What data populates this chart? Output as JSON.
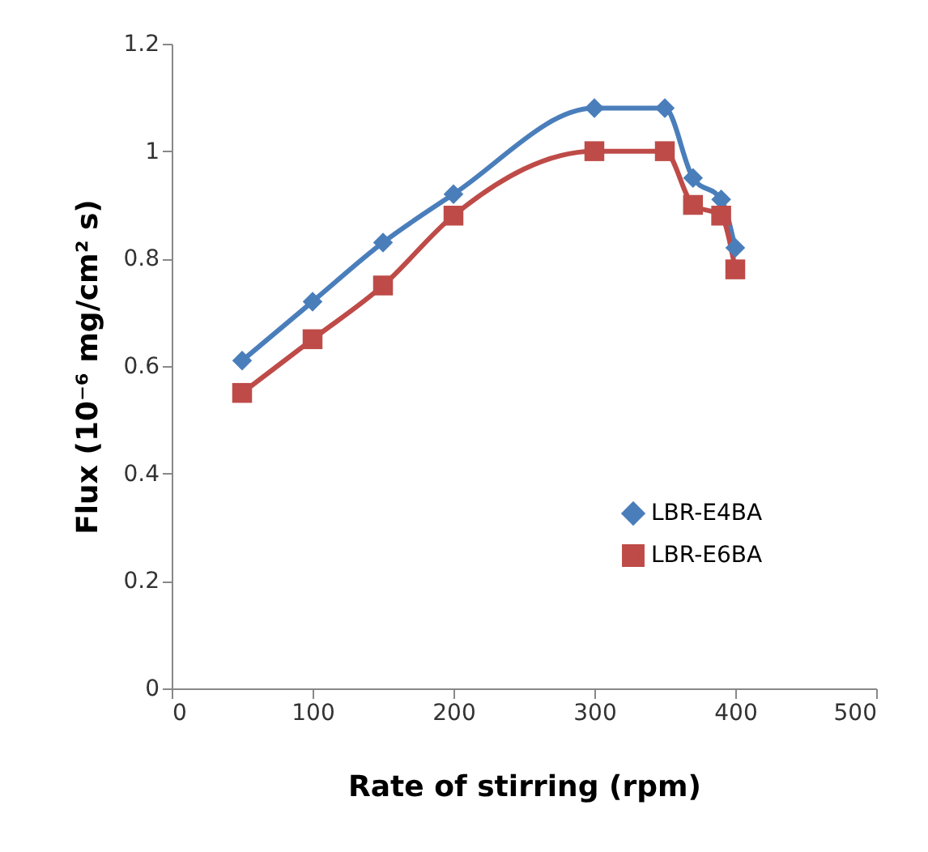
{
  "chart_data": {
    "type": "line",
    "xlabel": "Rate of stirring (rpm)",
    "ylabel": "Flux (10⁻⁶ mg/cm² s)",
    "x": [
      50,
      100,
      150,
      200,
      300,
      350,
      370,
      390,
      400
    ],
    "series": [
      {
        "name": "LBR-E4BA",
        "color": "#4a7ebb",
        "marker": "diamond",
        "values": [
          0.61,
          0.72,
          0.83,
          0.92,
          1.08,
          1.08,
          0.95,
          0.91,
          0.82
        ]
      },
      {
        "name": "LBR-E6BA",
        "color": "#be4b48",
        "marker": "square",
        "values": [
          0.55,
          0.65,
          0.75,
          0.88,
          1.0,
          1.0,
          0.9,
          0.88,
          0.78
        ]
      }
    ],
    "xlim": [
      0,
      500
    ],
    "xticks": [
      0,
      100,
      200,
      300,
      400,
      500
    ],
    "ylim": [
      0,
      1.2
    ],
    "yticks": [
      0,
      0.2,
      0.4,
      0.6,
      0.8,
      1,
      1.2
    ],
    "grid": false,
    "legend": "bottom right",
    "line_style": "solid"
  }
}
